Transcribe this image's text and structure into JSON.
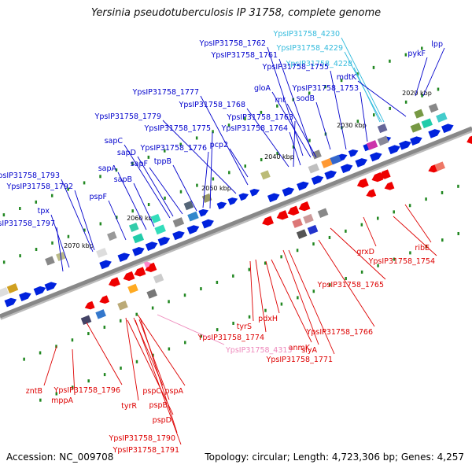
{
  "title": "Yersinia pseudotuberculosis IP 31758, complete genome",
  "footer": {
    "accession": "Accession: NC_009708",
    "summary": "Topology: circular; Length: 4,723,306 bp; Genes: 4,257"
  },
  "colors": {
    "plus_label": "#0000cc",
    "minus_label": "#dd0000",
    "rna_label": "#33bbdd",
    "pseudo_label": "#ee88bb",
    "backbone": "#888888",
    "tick": "#228822"
  },
  "ticks": [
    "2020 kbp",
    "2030 kbp",
    "2040 kbp",
    "2050 kbp",
    "2060 kbp",
    "2070 kbp"
  ],
  "plus_labels": [
    "YpsIP31758_4230",
    "YpsIP31758_4229",
    "YpsIP31758_4228",
    "lpp",
    "pykF",
    "mdtK",
    "YpsIP31758_1762",
    "YpsIP31758_1761",
    "YpsIP31758_1755",
    "YpsIP31758_1753",
    "gloA",
    "rnt",
    "sodB",
    "YpsIP31758_1777",
    "YpsIP31758_1768",
    "YpsIP31758_1779",
    "YpsIP31758_1763",
    "YpsIP31758_1764",
    "YpsIP31758_1775",
    "YpsIP31758_1776",
    "sapC",
    "sapD",
    "sapF",
    "tppB",
    "pcp2",
    "sapA",
    "sapB",
    "YpsIP31758_1793",
    "YpsIP31758_1792",
    "pspF",
    "tpx",
    "YpsIP31758_1797"
  ],
  "minus_labels": [
    "ribE",
    "YpsIP31758_1754",
    "grxD",
    "YpsIP31758_1765",
    "YpsIP31758_1766",
    "tyrS",
    "pdxH",
    "YpsIP31758_1774",
    "anmK",
    "slyA",
    "YpsIP31758_1771",
    "YpsIP31758_4313",
    "zntB",
    "mppA",
    "YpsIP31758_1796",
    "tyrR",
    "pspC",
    "pspA",
    "pspB",
    "pspD",
    "YpsIP31758_1790",
    "YpsIP31758_1791"
  ]
}
